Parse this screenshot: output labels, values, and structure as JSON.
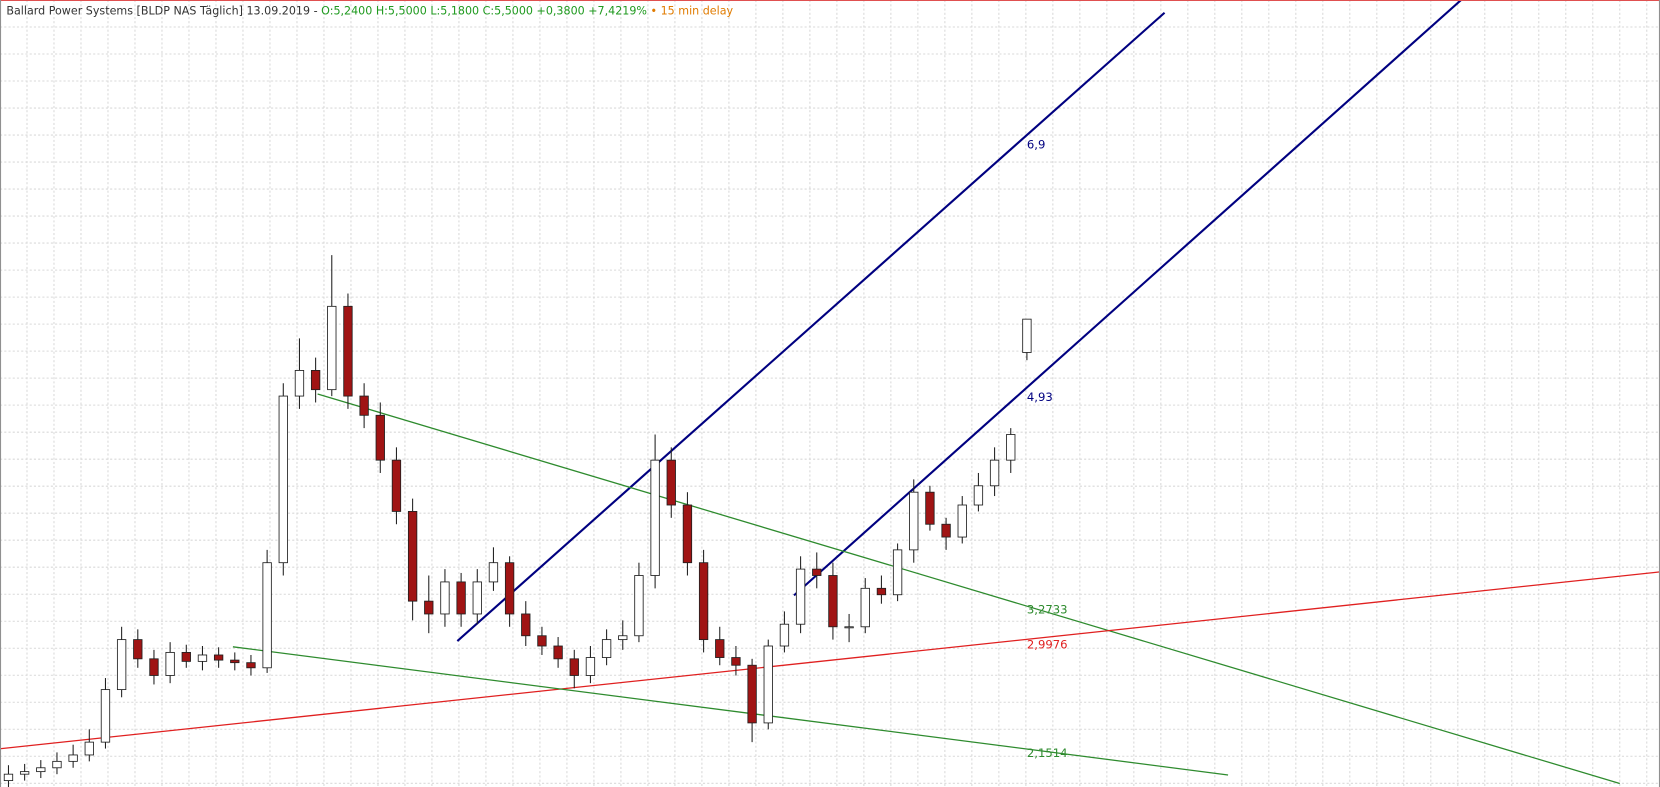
{
  "header": {
    "name": "Ballard Power Systems [BLDP NAS Täglich] 13.09.2019 -",
    "quote": "O:5,2400 H:5,5000 L:5,1800 C:5,5000 +0,3800 +7,4219%",
    "delay": "• 15 min delay"
  },
  "chart_data": {
    "type": "candlestick",
    "ylim": [
      1.85,
      7.99
    ],
    "grid": true,
    "up_color": "#ffffff",
    "down_color": "#a01414",
    "outline_color": "#202020",
    "open": [
      1.9,
      1.95,
      1.97,
      2.0,
      2.05,
      2.1,
      2.2,
      2.61,
      3.0,
      2.85,
      2.72,
      2.9,
      2.83,
      2.88,
      2.84,
      2.82,
      2.78,
      3.6,
      4.9,
      5.1,
      4.95,
      5.6,
      4.9,
      4.75,
      4.4,
      4.0,
      3.3,
      3.2,
      3.45,
      3.2,
      3.45,
      3.6,
      3.2,
      3.03,
      2.95,
      2.85,
      2.72,
      2.86,
      3.0,
      3.03,
      3.5,
      4.4,
      4.05,
      3.6,
      3.0,
      2.86,
      2.8,
      2.35,
      2.95,
      3.12,
      3.55,
      3.5,
      3.1,
      3.1,
      3.4,
      3.35,
      3.7,
      4.15,
      3.9,
      3.8,
      4.05,
      4.2,
      4.4,
      5.24
    ],
    "high": [
      2.02,
      2.03,
      2.06,
      2.12,
      2.18,
      2.3,
      2.7,
      3.1,
      3.08,
      2.92,
      2.98,
      2.96,
      2.95,
      2.94,
      2.9,
      2.88,
      3.7,
      5.0,
      5.35,
      5.2,
      6.0,
      5.7,
      5.0,
      4.85,
      4.5,
      4.1,
      3.5,
      3.55,
      3.52,
      3.55,
      3.72,
      3.65,
      3.3,
      3.1,
      3.02,
      2.92,
      2.95,
      3.08,
      3.15,
      3.6,
      4.6,
      4.5,
      4.15,
      3.7,
      3.1,
      2.95,
      2.85,
      3.0,
      3.22,
      3.65,
      3.68,
      3.6,
      3.2,
      3.48,
      3.5,
      3.75,
      4.25,
      4.2,
      3.95,
      4.12,
      4.3,
      4.5,
      4.65,
      5.5
    ],
    "low": [
      1.85,
      1.9,
      1.92,
      1.95,
      2.0,
      2.05,
      2.15,
      2.55,
      2.78,
      2.65,
      2.66,
      2.78,
      2.76,
      2.78,
      2.76,
      2.72,
      2.74,
      3.5,
      4.8,
      4.85,
      4.9,
      4.8,
      4.65,
      4.3,
      3.9,
      3.15,
      3.05,
      3.1,
      3.1,
      3.12,
      3.38,
      3.1,
      2.95,
      2.88,
      2.78,
      2.62,
      2.66,
      2.8,
      2.92,
      2.98,
      3.4,
      3.95,
      3.5,
      2.9,
      2.8,
      2.72,
      2.2,
      2.3,
      2.9,
      3.05,
      3.4,
      3.0,
      2.98,
      3.05,
      3.28,
      3.3,
      3.6,
      3.85,
      3.7,
      3.75,
      4.0,
      4.12,
      4.3,
      5.18
    ],
    "close": [
      1.95,
      1.97,
      2.0,
      2.05,
      2.1,
      2.2,
      2.61,
      3.0,
      2.85,
      2.72,
      2.9,
      2.83,
      2.88,
      2.84,
      2.82,
      2.78,
      3.6,
      4.9,
      5.1,
      4.95,
      5.6,
      4.9,
      4.75,
      4.4,
      4.0,
      3.3,
      3.2,
      3.45,
      3.2,
      3.45,
      3.6,
      3.2,
      3.03,
      2.95,
      2.85,
      2.72,
      2.86,
      3.0,
      3.03,
      3.5,
      4.4,
      4.05,
      3.6,
      3.0,
      2.86,
      2.8,
      2.35,
      2.95,
      3.12,
      3.55,
      3.5,
      3.1,
      3.1,
      3.4,
      3.35,
      3.7,
      4.15,
      3.9,
      3.8,
      4.05,
      4.2,
      4.4,
      4.6,
      5.5
    ],
    "trendlines": [
      {
        "value": 6.9,
        "label": "6,9",
        "color": "#000080"
      },
      {
        "value": 4.93,
        "label": "4,93",
        "color": "#000080"
      },
      {
        "value": 3.2733,
        "label": "3,2733",
        "color": "#2e8b2e"
      },
      {
        "value": 2.9976,
        "label": "2,9976",
        "color": "#e02020"
      },
      {
        "value": 2.1514,
        "label": "2,1514",
        "color": "#2e8b2e"
      }
    ]
  }
}
